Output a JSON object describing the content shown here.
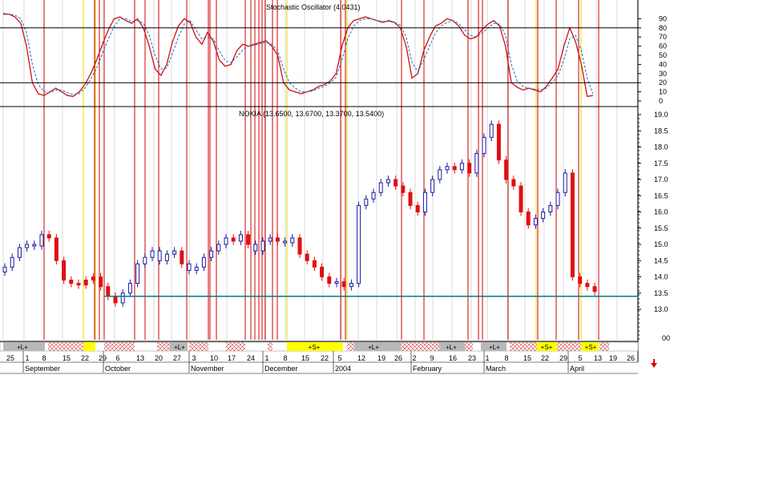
{
  "chart_data": [
    {
      "type": "line",
      "title": "Stochastic Oscillator (4.0431)",
      "ylim": [
        0,
        100
      ],
      "yticks": [
        0,
        10,
        20,
        30,
        40,
        50,
        60,
        70,
        80,
        90
      ],
      "reference_lines": [
        20,
        80
      ],
      "series": [
        {
          "color": "#d01010",
          "style": "solid",
          "values": [
            95,
            95,
            92,
            85,
            60,
            20,
            8,
            6,
            10,
            14,
            10,
            6,
            5,
            10,
            18,
            30,
            45,
            62,
            78,
            90,
            92,
            88,
            85,
            90,
            80,
            60,
            35,
            28,
            40,
            65,
            82,
            90,
            86,
            70,
            62,
            75,
            65,
            45,
            38,
            40,
            55,
            62,
            60,
            62,
            64,
            66,
            60,
            50,
            20,
            12,
            10,
            8,
            10,
            12,
            16,
            18,
            22,
            30,
            60,
            80,
            88,
            90,
            92,
            90,
            88,
            86,
            88,
            86,
            80,
            60,
            25,
            30,
            55,
            70,
            82,
            85,
            90,
            88,
            82,
            72,
            68,
            70,
            78,
            84,
            88,
            82,
            60,
            20,
            15,
            12,
            14,
            12,
            10,
            16,
            25,
            35,
            60,
            80,
            65,
            40,
            5,
            6
          ]
        },
        {
          "color": "#1a6fd0",
          "style": "dashed",
          "values": [
            96,
            95,
            94,
            90,
            75,
            40,
            18,
            10,
            9,
            12,
            12,
            9,
            7,
            8,
            14,
            24,
            36,
            52,
            68,
            82,
            90,
            90,
            87,
            88,
            85,
            72,
            50,
            35,
            36,
            52,
            70,
            84,
            88,
            78,
            68,
            70,
            68,
            55,
            44,
            42,
            48,
            56,
            60,
            61,
            63,
            64,
            62,
            55,
            35,
            20,
            14,
            10,
            10,
            11,
            14,
            16,
            20,
            26,
            45,
            68,
            82,
            88,
            90,
            90,
            88,
            87,
            87,
            86,
            83,
            70,
            42,
            32,
            45,
            60,
            74,
            82,
            86,
            88,
            85,
            78,
            72,
            70,
            74,
            80,
            85,
            84,
            72,
            40,
            22,
            16,
            14,
            13,
            12,
            14,
            20,
            28,
            45,
            68,
            72,
            55,
            25,
            8
          ]
        }
      ]
    },
    {
      "type": "candlestick",
      "title": "NOKIA (13.6500, 13.6700, 13.3700, 13.5400)",
      "ylim": [
        12.8,
        19.2
      ],
      "yticks": [
        13.0,
        13.5,
        14.0,
        14.5,
        15.0,
        15.5,
        16.0,
        16.5,
        17.0,
        17.5,
        18.0,
        18.5,
        19.0
      ],
      "support_line": 13.4,
      "closes": [
        14.3,
        14.6,
        14.9,
        15.0,
        14.95,
        15.3,
        15.2,
        14.5,
        13.9,
        13.8,
        13.75,
        13.9,
        14.0,
        13.7,
        13.4,
        13.2,
        13.5,
        13.8,
        14.4,
        14.6,
        14.8,
        14.5,
        14.7,
        14.8,
        14.4,
        14.2,
        14.3,
        14.6,
        14.8,
        15.0,
        15.2,
        15.1,
        15.3,
        15.0,
        14.8,
        15.1,
        15.2,
        15.1,
        15.05,
        15.2,
        14.7,
        14.5,
        14.3,
        14.0,
        13.8,
        13.85,
        13.7,
        13.8,
        16.2,
        16.4,
        16.6,
        16.9,
        17.0,
        16.8,
        16.6,
        16.2,
        16.0,
        16.6,
        17.0,
        17.3,
        17.4,
        17.3,
        17.5,
        17.2,
        17.8,
        18.3,
        18.7,
        17.6,
        17.0,
        16.8,
        16.0,
        15.6,
        15.8,
        16.0,
        16.2,
        16.6,
        17.2,
        14.0,
        13.8,
        13.7,
        13.55
      ],
      "direction": [
        "up",
        "up",
        "up",
        "up",
        "up",
        "up",
        "down",
        "down",
        "down",
        "down",
        "down",
        "down",
        "down",
        "down",
        "down",
        "down",
        "up",
        "up",
        "up",
        "up",
        "up",
        "up",
        "up",
        "up",
        "down",
        "up",
        "up",
        "up",
        "up",
        "up",
        "up",
        "down",
        "up",
        "down",
        "up",
        "up",
        "up",
        "down",
        "up",
        "up",
        "down",
        "down",
        "down",
        "down",
        "down",
        "up",
        "down",
        "up",
        "up",
        "up",
        "up",
        "up",
        "up",
        "down",
        "down",
        "down",
        "down",
        "up",
        "up",
        "up",
        "up",
        "down",
        "up",
        "down",
        "up",
        "up",
        "up",
        "down",
        "down",
        "down",
        "down",
        "down",
        "up",
        "up",
        "up",
        "up",
        "up",
        "down",
        "down",
        "down",
        "down"
      ]
    }
  ],
  "axis_labels": {
    "days": [
      "25",
      "1",
      "8",
      "15",
      "22",
      "29",
      "6",
      "13",
      "20",
      "27",
      "3",
      "10",
      "17",
      "24",
      "1",
      "8",
      "15",
      "22",
      "5",
      "12",
      "19",
      "26",
      "2",
      "9",
      "16",
      "23",
      "1",
      "8",
      "15",
      "22",
      "29",
      "5",
      "13",
      "19",
      "26"
    ],
    "months": [
      "September",
      "October",
      "November",
      "December",
      "2004",
      "February",
      "March",
      "April"
    ],
    "volume_label": "00"
  },
  "signals": {
    "bands": [
      "+L+",
      "+L+",
      "+S+",
      "+L+",
      "+L+",
      "+L+",
      "+S+",
      "+S+"
    ]
  },
  "colors": {
    "up_candle": "#1a1aa0",
    "down_candle": "#e01010",
    "stoch_k": "#d01010",
    "stoch_d": "#1a6fd0",
    "support": "#008080",
    "red_marker": "#d00000",
    "yellow_marker": "#e8d800",
    "band_gray": "#b8b8b8",
    "band_yellow": "#ffff00"
  },
  "icons": {
    "arrow": "down-arrow-icon"
  }
}
